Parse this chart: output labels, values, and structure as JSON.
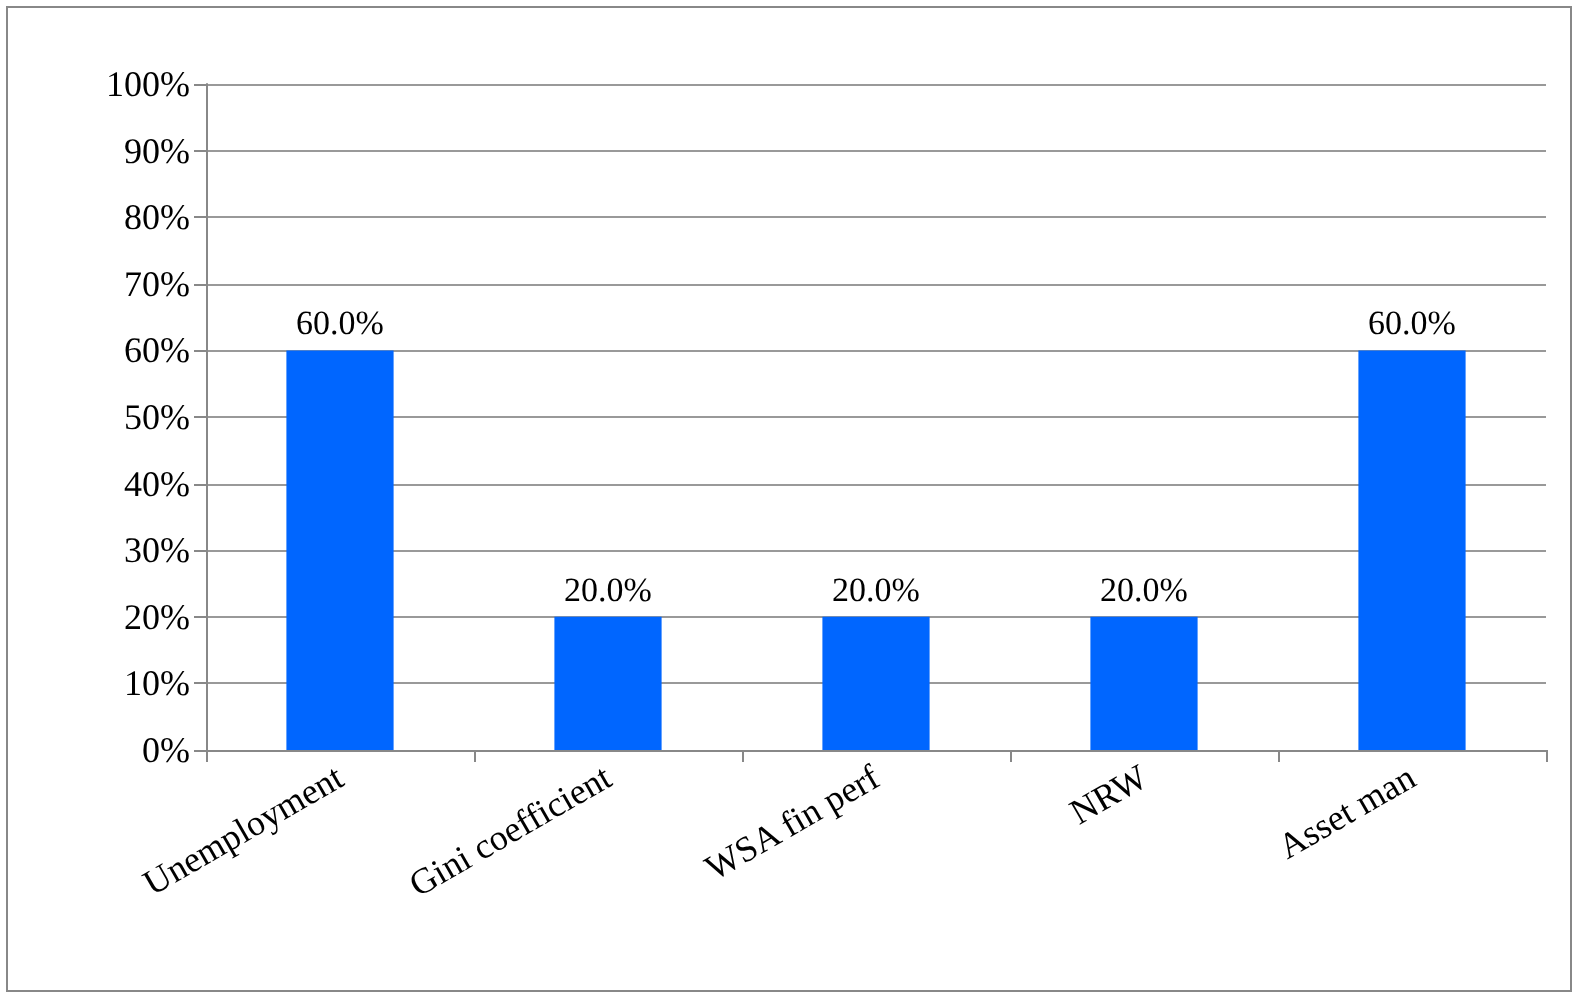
{
  "chart_data": {
    "type": "bar",
    "categories": [
      "Unemployment",
      "Gini coefficient",
      "WSA fin perf",
      "NRW",
      "Asset man"
    ],
    "values": [
      60,
      20,
      20,
      20,
      60
    ],
    "value_labels": [
      "60.0%",
      "20.0%",
      "20.0%",
      "20.0%",
      "60.0%"
    ],
    "color": "#0066ff",
    "ylim": [
      0,
      100
    ],
    "yticks": [
      {
        "value": 0,
        "label": "0%"
      },
      {
        "value": 10,
        "label": "10%"
      },
      {
        "value": 20,
        "label": "20%"
      },
      {
        "value": 30,
        "label": "30%"
      },
      {
        "value": 40,
        "label": "40%"
      },
      {
        "value": 50,
        "label": "50%"
      },
      {
        "value": 60,
        "label": "60%"
      },
      {
        "value": 70,
        "label": "70%"
      },
      {
        "value": 80,
        "label": "80%"
      },
      {
        "value": 90,
        "label": "90%"
      },
      {
        "value": 100,
        "label": "100%"
      }
    ],
    "grid": "y"
  }
}
